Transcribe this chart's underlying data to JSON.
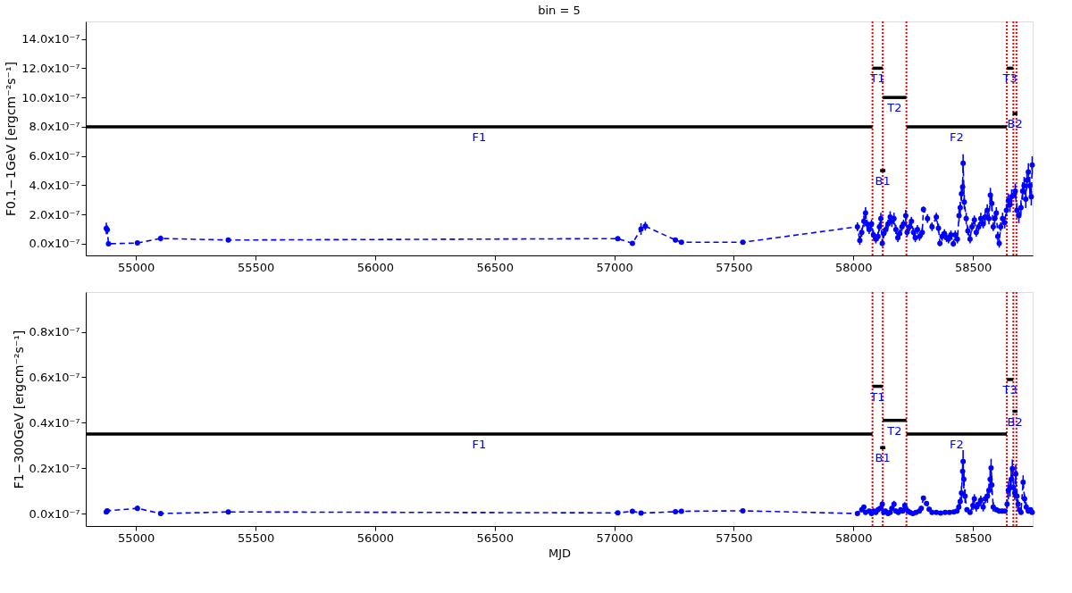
{
  "chart_data": [
    {
      "type": "line",
      "title": "bin = 5",
      "ylabel": "F0.1−1GeV [ergcm⁻²s⁻¹]",
      "marker": "circle",
      "line_style": "dashed",
      "grid": false,
      "xlim": [
        54790,
        58750
      ],
      "xticks": [
        55000,
        55500,
        56000,
        56500,
        57000,
        57500,
        58000,
        58500
      ],
      "ylim": [
        -8e-08,
        1.52e-06
      ],
      "yticks": [
        {
          "value": 0,
          "label": "0.0x10⁻⁷"
        },
        {
          "value": 2e-07,
          "label": "2.0x10⁻⁷"
        },
        {
          "value": 4e-07,
          "label": "4.0x10⁻⁷"
        },
        {
          "value": 6e-07,
          "label": "6.0x10⁻⁷"
        },
        {
          "value": 8e-07,
          "label": "8.0x10⁻⁷"
        },
        {
          "value": 1e-06,
          "label": "10.0x10⁻⁷"
        },
        {
          "value": 1.2e-06,
          "label": "12.0x10⁻⁷"
        },
        {
          "value": 1.4e-06,
          "label": "14.0x10⁻⁷"
        }
      ],
      "series": [
        {
          "color": "#0000ff",
          "x": [
            54876,
            54880,
            54885,
            55006,
            55103,
            55386,
            57015,
            57076,
            57112,
            57130,
            57256,
            57281,
            57538,
            58017,
            58027,
            58035,
            58044,
            58051,
            58057,
            58066,
            58076,
            58084,
            58094,
            58103,
            58109,
            58115,
            58121,
            58127,
            58136,
            58145,
            58154,
            58161,
            58170,
            58178,
            58186,
            58194,
            58203,
            58210,
            58219,
            58225,
            58235,
            58243,
            58252,
            58259,
            58268,
            58277,
            58288,
            58293,
            58310,
            58329,
            58347,
            58356,
            58362,
            58371,
            58381,
            58390,
            58398,
            58408,
            58418,
            58426,
            58435,
            58442,
            58447,
            58452,
            58457,
            58459,
            58464,
            58472,
            58479,
            58488,
            58496,
            58506,
            58514,
            58524,
            58533,
            58543,
            58551,
            58560,
            58567,
            58573,
            58579,
            58585,
            58591,
            58598,
            58604,
            58610,
            58616,
            58624,
            58633,
            58640,
            58648,
            58655,
            58662,
            58672,
            58677,
            58684,
            58692,
            58701,
            58708,
            58714,
            58721,
            58726,
            58732,
            58738,
            58744,
            58748
          ],
          "values": [
            1.05e-07,
            9.5e-08,
            0.0,
            5e-09,
            3.6e-08,
            2.5e-08,
            3.5e-08,
            2e-09,
            1e-07,
            1.2e-07,
            2.5e-08,
            1e-08,
            1e-08,
            1.16e-07,
            2.2e-08,
            7.8e-08,
            1.54e-07,
            2.1e-07,
            1.35e-07,
            9.7e-08,
            1.35e-07,
            6e-08,
            3.2e-08,
            5e-08,
            1.16e-07,
            1.72e-07,
            3e-09,
            6.9e-08,
            9.7e-08,
            1.35e-07,
            1.82e-07,
            1.54e-07,
            1.72e-07,
            9.7e-08,
            4.1e-08,
            6.9e-08,
            1.16e-07,
            1.35e-07,
            1.91e-07,
            7.8e-08,
            1.16e-07,
            1.54e-07,
            7.8e-08,
            4.1e-08,
            9.7e-08,
            5e-08,
            7.8e-08,
            2.34e-07,
            1.72e-07,
            1.16e-07,
            1.82e-07,
            1.07e-07,
            3e-09,
            5e-08,
            6.9e-08,
            4.1e-08,
            3.2e-08,
            6e-08,
            0.0,
            6e-08,
            3.2e-08,
            1.91e-07,
            2.47e-07,
            3.41e-07,
            3.88e-07,
            5.51e-07,
            2.85e-07,
            1.72e-07,
            8.8e-08,
            3.2e-08,
            1.16e-07,
            1.63e-07,
            7.8e-08,
            1.16e-07,
            1.72e-07,
            1.35e-07,
            1.82e-07,
            2.29e-07,
            1.72e-07,
            3.32e-07,
            2.76e-07,
            1.16e-07,
            1.72e-07,
            2.1e-07,
            5e-08,
            3e-09,
            1.16e-07,
            1.72e-07,
            1.44e-07,
            2.29e-07,
            2.94e-07,
            2.66e-07,
            3.22e-07,
            3.32e-07,
            3.6e-07,
            2.29e-07,
            1.91e-07,
            2.47e-07,
            3.6e-07,
            3.97e-07,
            3.04e-07,
            4.35e-07,
            4.91e-07,
            3.97e-07,
            3.22e-07,
            5.38e-07
          ],
          "errors": [
            4e-08,
            3e-08,
            null,
            null,
            2e-08,
            8e-09,
            1.5e-08,
            null,
            4e-08,
            3e-08,
            1.5e-08,
            null,
            null,
            3e-08,
            3e-08,
            3e-08,
            4e-08,
            4e-08,
            3e-08,
            3e-08,
            3e-08,
            3e-08,
            3e-08,
            3e-08,
            3e-08,
            4e-08,
            2e-08,
            3e-08,
            3e-08,
            3e-08,
            4e-08,
            4e-08,
            4e-08,
            3e-08,
            3e-08,
            3e-08,
            3e-08,
            3e-08,
            4e-08,
            3e-08,
            3e-08,
            3e-08,
            3e-08,
            3e-08,
            3e-08,
            3e-08,
            3e-08,
            2e-08,
            3e-08,
            3e-08,
            3e-08,
            3e-08,
            2e-08,
            3e-08,
            3e-08,
            3e-08,
            3e-08,
            3e-08,
            2e-08,
            3e-08,
            3e-08,
            4e-08,
            4e-08,
            5e-08,
            5e-08,
            6e-08,
            5e-08,
            4e-08,
            3e-08,
            3e-08,
            3e-08,
            3e-08,
            3e-08,
            3e-08,
            4e-08,
            3e-08,
            4e-08,
            4e-08,
            4e-08,
            5e-08,
            5e-08,
            3e-08,
            4e-08,
            4e-08,
            3e-08,
            3e-08,
            3e-08,
            4e-08,
            4e-08,
            4e-08,
            5e-08,
            5e-08,
            5e-08,
            null,
            5e-08,
            5e-08,
            5e-08,
            5e-08,
            6e-08,
            6e-08,
            6e-08,
            6e-08,
            6e-08,
            6e-08,
            6e-08,
            6e-08
          ]
        },
        {
          "name": "F1",
          "color": "#000000",
          "marker": "none",
          "line_style": "solid",
          "x": [
            54790,
            58080
          ],
          "values": [
            8e-07,
            8e-07
          ]
        },
        {
          "name": "T1",
          "color": "#000000",
          "marker": "none",
          "line_style": "solid",
          "x": [
            58080,
            58123
          ],
          "values": [
            1.2e-06,
            1.2e-06
          ]
        },
        {
          "name": "B1",
          "color": "#000000",
          "marker": "none",
          "line_style": "solid",
          "x": [
            58112,
            58134
          ],
          "values": [
            5e-07,
            5e-07
          ]
        },
        {
          "name": "T2",
          "color": "#000000",
          "marker": "none",
          "line_style": "solid",
          "x": [
            58123,
            58222
          ],
          "values": [
            1e-06,
            1e-06
          ]
        },
        {
          "name": "F2",
          "color": "#000000",
          "marker": "none",
          "line_style": "solid",
          "x": [
            58222,
            58642
          ],
          "values": [
            8e-07,
            8e-07
          ]
        },
        {
          "name": "T3",
          "color": "#000000",
          "marker": "none",
          "line_style": "solid",
          "x": [
            58642,
            58669
          ],
          "values": [
            1.2e-06,
            1.2e-06
          ]
        },
        {
          "name": "B2",
          "color": "#000000",
          "marker": "none",
          "line_style": "solid",
          "x": [
            58666,
            58686
          ],
          "values": [
            8.9e-07,
            8.9e-07
          ]
        }
      ],
      "ref_lines": [
        {
          "axis": "x",
          "value": 58080,
          "color": "#ff0000",
          "line_style": "dotted"
        },
        {
          "axis": "x",
          "value": 58123,
          "color": "#ff0000",
          "line_style": "dotted"
        },
        {
          "axis": "x",
          "value": 58222,
          "color": "#ff0000",
          "line_style": "dotted"
        },
        {
          "axis": "x",
          "value": 58642,
          "color": "#ff0000",
          "line_style": "dotted"
        },
        {
          "axis": "x",
          "value": 58669,
          "color": "#ff0000",
          "line_style": "dotted"
        },
        {
          "axis": "x",
          "value": 58682,
          "color": "#ff0000",
          "line_style": "dotted"
        }
      ]
    },
    {
      "type": "line",
      "xlabel": "MJD",
      "ylabel": "F1−300GeV [ergcm⁻²s⁻¹]",
      "marker": "circle",
      "line_style": "dashed",
      "grid": false,
      "xlim": [
        54790,
        58750
      ],
      "xticks": [
        55000,
        55500,
        56000,
        56500,
        57000,
        57500,
        58000,
        58500
      ],
      "ylim": [
        -5.5e-09,
        9.75e-08
      ],
      "yticks": [
        {
          "value": 0,
          "label": "0.0x10⁻⁷"
        },
        {
          "value": 2e-08,
          "label": "0.2x10⁻⁷"
        },
        {
          "value": 4e-08,
          "label": "0.4x10⁻⁷"
        },
        {
          "value": 6e-08,
          "label": "0.6x10⁻⁷"
        },
        {
          "value": 8e-08,
          "label": "0.8x10⁻⁷"
        }
      ],
      "series": [
        {
          "color": "#0000ff",
          "x": [
            54876,
            54880,
            55006,
            55103,
            55386,
            57015,
            57076,
            57112,
            57256,
            57281,
            57538,
            58017,
            58035,
            58044,
            58051,
            58066,
            58076,
            58084,
            58094,
            58103,
            58112,
            58121,
            58127,
            58134,
            58145,
            58154,
            58161,
            58170,
            58178,
            58188,
            58198,
            58206,
            58215,
            58219,
            58228,
            58237,
            58249,
            58262,
            58276,
            58284,
            58293,
            58306,
            58317,
            58329,
            58347,
            58365,
            58384,
            58402,
            58420,
            58433,
            58441,
            58447,
            58452,
            58457,
            58459,
            58462,
            58467,
            58475,
            58488,
            58500,
            58506,
            58514,
            58524,
            58533,
            58543,
            58552,
            58561,
            58567,
            58572,
            58576,
            58579,
            58585,
            58598,
            58610,
            58622,
            58634,
            58643,
            58648,
            58655,
            58660,
            58665,
            58670,
            58675,
            58679,
            58684,
            58689,
            58695,
            58701,
            58710,
            58716,
            58723,
            58732,
            58741,
            58748
          ],
          "values": [
            7e-10,
            1.2e-09,
            2.3e-09,
            0.0,
            7e-10,
            3e-10,
            1e-09,
            2e-10,
            8e-10,
            1e-09,
            1.2e-09,
            0.0,
            1.7e-09,
            2.9e-09,
            5e-10,
            1.1e-09,
            0.0,
            1.1e-09,
            5e-10,
            1.7e-09,
            2.3e-09,
            4.1e-09,
            5e-10,
            1.1e-09,
            0.0,
            5e-10,
            2.3e-09,
            4.1e-09,
            1.1e-09,
            5e-10,
            1.7e-09,
            1.1e-09,
            3.5e-09,
            2.3e-09,
            1.1e-09,
            5e-10,
            0.0,
            5e-10,
            1.1e-09,
            2.3e-09,
            6.8e-09,
            4.4e-09,
            1.9e-09,
            5e-10,
            5e-10,
            2e-10,
            5e-10,
            5e-10,
            7e-10,
            1.1e-09,
            2.9e-09,
            5.3e-09,
            9e-09,
            1.86e-08,
            2.29e-08,
            1.5e-08,
            7.7e-09,
            1.7e-09,
            5e-10,
            3.5e-09,
            6.5e-09,
            2.9e-09,
            4.1e-09,
            5.9e-09,
            2.9e-09,
            6.5e-09,
            7.7e-09,
            1.02e-08,
            1.5e-08,
            2.01e-08,
            1.26e-08,
            2.9e-09,
            1.7e-09,
            1.1e-09,
            1.1e-09,
            1.1e-09,
            4.1e-09,
            1.02e-08,
            1.14e-08,
            1.5e-08,
            1.98e-08,
            1.14e-08,
            9e-09,
            1.74e-08,
            7.7e-09,
            4.1e-09,
            1.7e-09,
            5e-10,
            1.38e-08,
            6.5e-09,
            2.9e-09,
            1.1e-09,
            1.7e-09,
            5e-10
          ],
          "errors": [
            4e-10,
            4e-10,
            1.2e-09,
            3e-10,
            4e-10,
            4e-10,
            4e-10,
            null,
            4e-10,
            4e-10,
            4e-10,
            5e-10,
            1e-09,
            1e-09,
            1e-09,
            1e-09,
            5e-10,
            1e-09,
            1e-09,
            1e-09,
            1e-09,
            1.5e-09,
            1e-09,
            1e-09,
            5e-10,
            1e-09,
            1e-09,
            1.5e-09,
            1e-09,
            1e-09,
            1e-09,
            1e-09,
            1.5e-09,
            1e-09,
            1e-09,
            1e-09,
            5e-10,
            1e-09,
            1e-09,
            1e-09,
            1e-09,
            1e-09,
            1e-09,
            1e-09,
            5e-10,
            null,
            5e-10,
            5e-10,
            7e-10,
            1e-09,
            2e-09,
            2e-09,
            3e-09,
            4e-09,
            5e-09,
            4e-09,
            3e-09,
            1e-09,
            5e-10,
            2e-09,
            2e-09,
            2e-09,
            2e-09,
            2e-09,
            2e-09,
            2e-09,
            3e-09,
            3e-09,
            4e-09,
            4e-09,
            4e-09,
            2e-09,
            1e-09,
            1e-09,
            1e-09,
            1e-09,
            2e-09,
            4e-09,
            4e-09,
            4e-09,
            4e-09,
            4e-09,
            3e-09,
            4e-09,
            3e-09,
            2e-09,
            1e-09,
            5e-10,
            3e-09,
            2e-09,
            2e-09,
            1e-09,
            1e-09,
            5e-10
          ]
        },
        {
          "name": "F1",
          "color": "#000000",
          "marker": "none",
          "line_style": "solid",
          "x": [
            54790,
            58080
          ],
          "values": [
            3.5e-08,
            3.5e-08
          ]
        },
        {
          "name": "T1",
          "color": "#000000",
          "marker": "none",
          "line_style": "solid",
          "x": [
            58080,
            58123
          ],
          "values": [
            5.6e-08,
            5.6e-08
          ]
        },
        {
          "name": "B1",
          "color": "#000000",
          "marker": "none",
          "line_style": "solid",
          "x": [
            58112,
            58134
          ],
          "values": [
            2.9e-08,
            2.9e-08
          ]
        },
        {
          "name": "T2",
          "color": "#000000",
          "marker": "none",
          "line_style": "solid",
          "x": [
            58123,
            58222
          ],
          "values": [
            4.1e-08,
            4.1e-08
          ]
        },
        {
          "name": "F2",
          "color": "#000000",
          "marker": "none",
          "line_style": "solid",
          "x": [
            58222,
            58642
          ],
          "values": [
            3.5e-08,
            3.5e-08
          ]
        },
        {
          "name": "T3",
          "color": "#000000",
          "marker": "none",
          "line_style": "solid",
          "x": [
            58642,
            58669
          ],
          "values": [
            5.9e-08,
            5.9e-08
          ]
        },
        {
          "name": "B2",
          "color": "#000000",
          "marker": "none",
          "line_style": "solid",
          "x": [
            58666,
            58686
          ],
          "values": [
            4.5e-08,
            4.5e-08
          ]
        }
      ],
      "ref_lines": [
        {
          "axis": "x",
          "value": 58080,
          "color": "#ff0000",
          "line_style": "dotted"
        },
        {
          "axis": "x",
          "value": 58123,
          "color": "#ff0000",
          "line_style": "dotted"
        },
        {
          "axis": "x",
          "value": 58222,
          "color": "#ff0000",
          "line_style": "dotted"
        },
        {
          "axis": "x",
          "value": 58642,
          "color": "#ff0000",
          "line_style": "dotted"
        },
        {
          "axis": "x",
          "value": 58669,
          "color": "#ff0000",
          "line_style": "dotted"
        },
        {
          "axis": "x",
          "value": 58682,
          "color": "#ff0000",
          "line_style": "dotted"
        }
      ]
    }
  ]
}
